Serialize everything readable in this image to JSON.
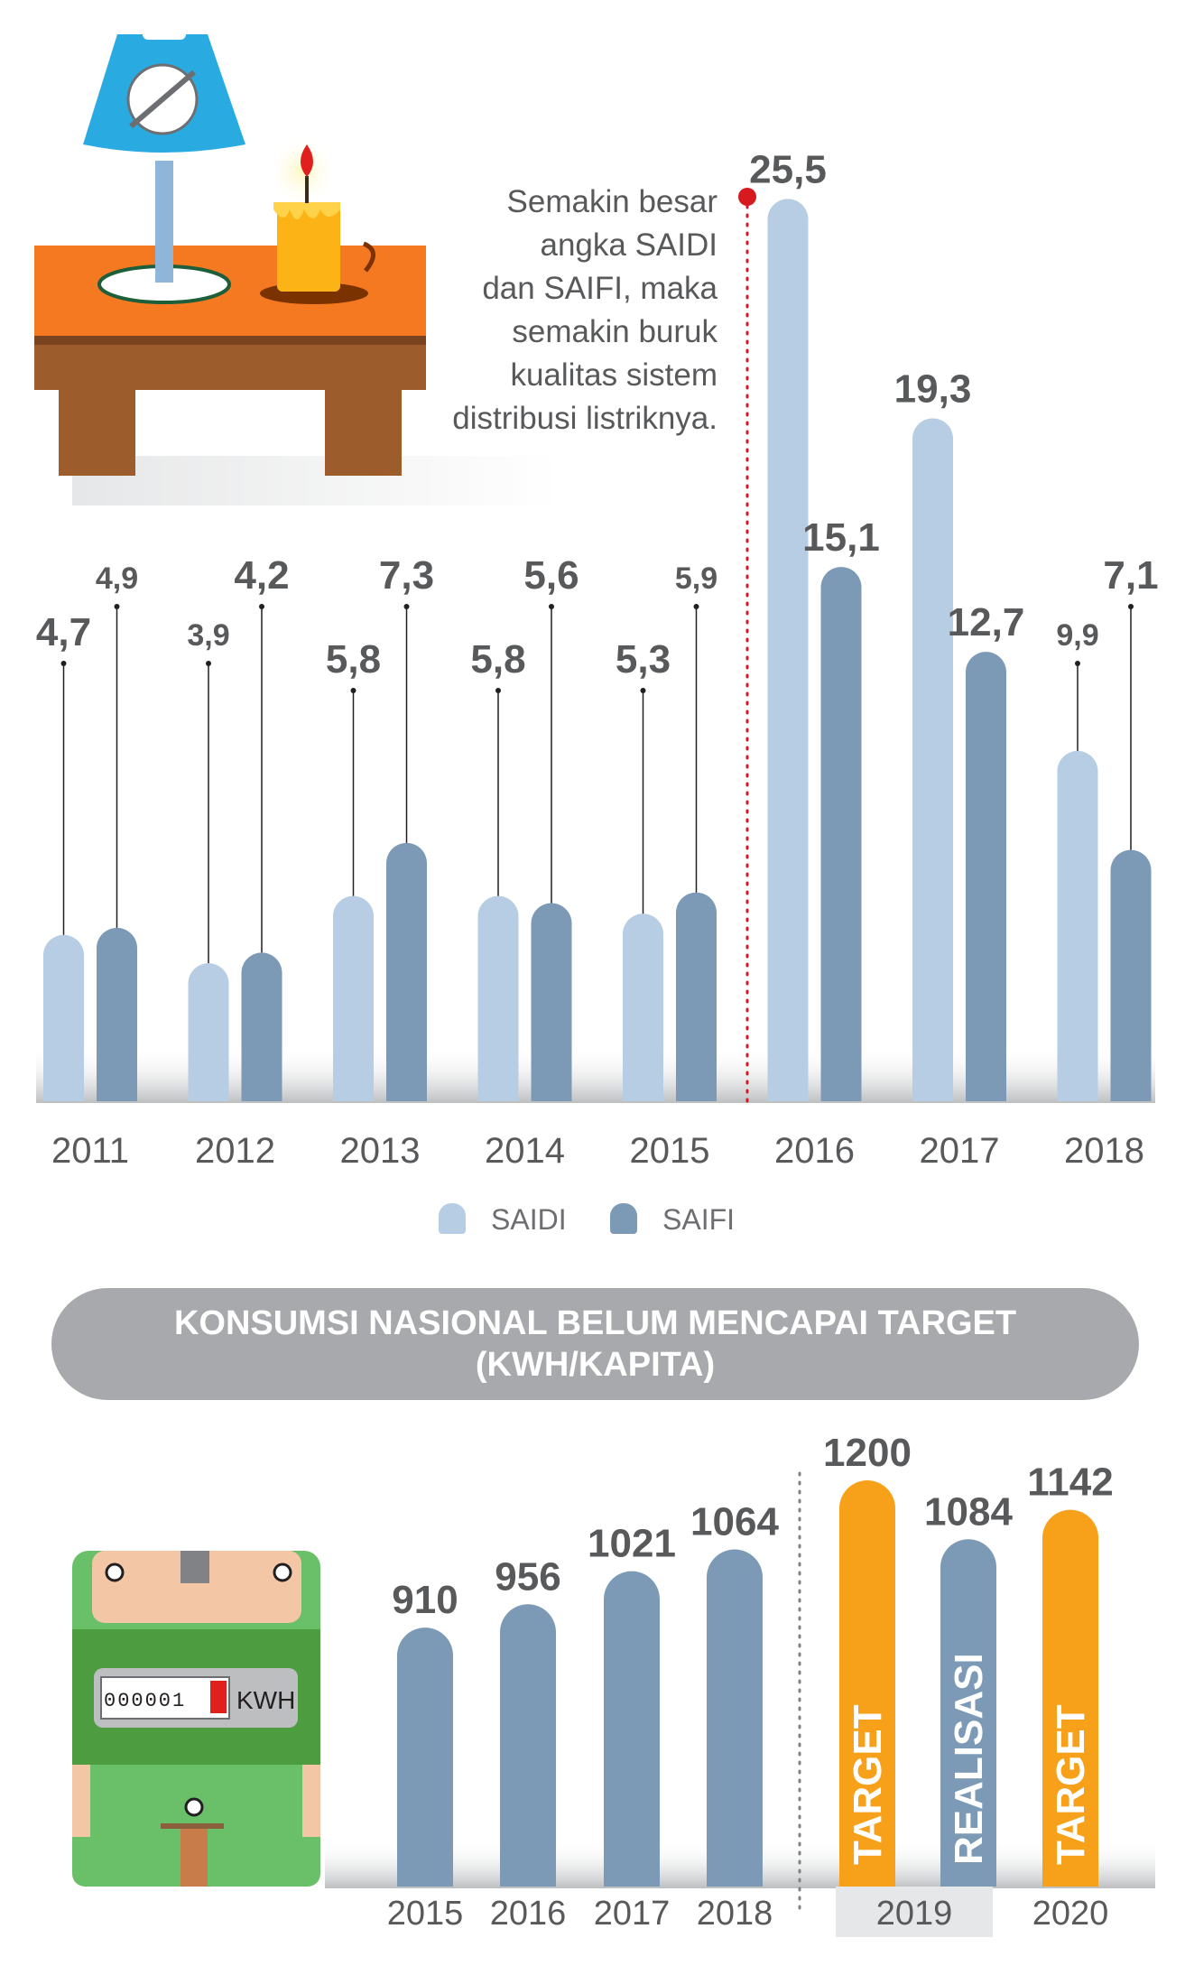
{
  "note": {
    "lines": [
      "Semakin besar",
      "angka SAIDI",
      "dan SAIFI, maka",
      "semakin buruk",
      "kualitas sistem",
      "distribusi listriknya."
    ]
  },
  "legend": [
    {
      "name": "SAIDI",
      "color": "#b7cde3"
    },
    {
      "name": "SAIFI",
      "color": "#7c9ab6"
    }
  ],
  "banner": {
    "title": "KONSUMSI NASIONAL BELUM MENCAPAI TARGET",
    "subtitle": "(KWH/KAPITA)"
  },
  "meter": {
    "digits": "000001",
    "unit": "KWH"
  },
  "colors": {
    "saidi": "#b7cde3",
    "saifi": "#7c9ab6",
    "target": "#f7a11a",
    "realisasi": "#7c9ab6",
    "value_text": "#58595b",
    "axis_text": "#58595b",
    "marker": "#d71920"
  },
  "chart_data": [
    {
      "type": "bar",
      "categories": [
        "2011",
        "2012",
        "2013",
        "2014",
        "2015",
        "2016",
        "2017",
        "2018"
      ],
      "series": [
        {
          "name": "SAIDI",
          "values": [
            "4,7",
            "3,9",
            "5,8",
            "5,8",
            "5,3",
            "25,5",
            "19,3",
            "9,9"
          ]
        },
        {
          "name": "SAIFI",
          "values": [
            "4,9",
            "4,2",
            "7,3",
            "5,6",
            "5,9",
            "15,1",
            "12,7",
            "7,1"
          ]
        }
      ],
      "legend_position": "bottom-center",
      "divider_before": "2016"
    },
    {
      "type": "bar",
      "title": "KONSUMSI NASIONAL BELUM MENCAPAI TARGET",
      "subtitle": "(KWH/KAPITA)",
      "categories": [
        "2015",
        "2016",
        "2017",
        "2018",
        "2019",
        "2020"
      ],
      "bars": [
        {
          "year": "2015",
          "value": 910,
          "label": "910",
          "kind": "realisasi"
        },
        {
          "year": "2016",
          "value": 956,
          "label": "956",
          "kind": "realisasi"
        },
        {
          "year": "2017",
          "value": 1021,
          "label": "1021",
          "kind": "realisasi"
        },
        {
          "year": "2018",
          "value": 1064,
          "label": "1064",
          "kind": "realisasi"
        },
        {
          "year": "2019",
          "value": 1200,
          "label": "1200",
          "kind": "target",
          "text": "TARGET"
        },
        {
          "year": "2019",
          "value": 1084,
          "label": "1084",
          "kind": "realisasi",
          "text": "REALISASI"
        },
        {
          "year": "2020",
          "value": 1142,
          "label": "1142",
          "kind": "target",
          "text": "TARGET"
        }
      ]
    }
  ]
}
